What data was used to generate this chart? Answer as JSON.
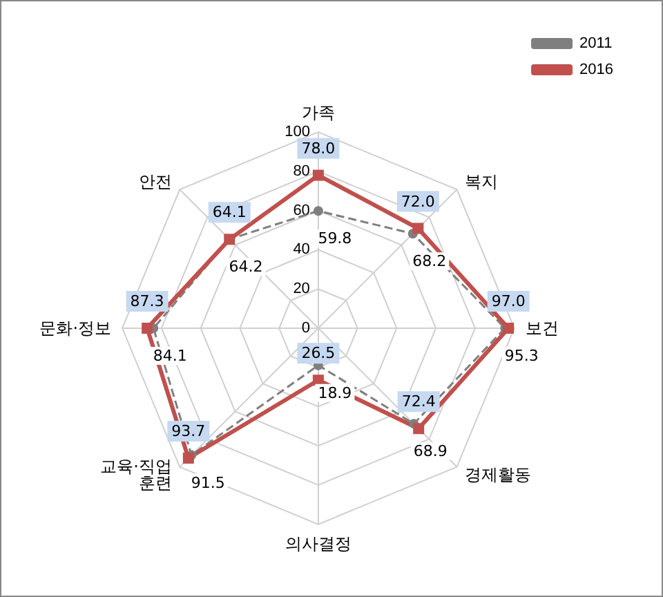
{
  "chart_data": {
    "type": "radar",
    "categories": [
      "가족",
      "복지",
      "보건",
      "경제활동",
      "의사결정",
      "교육·직업\n훈련",
      "문화·정보",
      "안전"
    ],
    "series": [
      {
        "name": "2011",
        "color": "#7f7f7f",
        "marker": "circle",
        "line_style": "dashed",
        "values": [
          59.8,
          68.2,
          95.3,
          68.9,
          18.9,
          91.5,
          84.1,
          64.2
        ],
        "value_labels": [
          "59.8",
          "68.2",
          "95.3",
          "68.9",
          "18.9",
          "91.5",
          "84.1",
          "64.2"
        ]
      },
      {
        "name": "2016",
        "color": "#c0504d",
        "marker": "square",
        "line_style": "solid",
        "values": [
          78.0,
          72.0,
          97.0,
          72.4,
          26.5,
          93.7,
          87.3,
          64.1
        ],
        "value_labels": [
          "78.0",
          "72.0",
          "97.0",
          "72.4",
          "26.5",
          "93.7",
          "87.3",
          "64.1"
        ]
      }
    ],
    "ylim": [
      0,
      100
    ],
    "yticks": [
      0,
      20,
      40,
      60,
      80,
      100
    ],
    "grid": true,
    "legend": "top right"
  }
}
